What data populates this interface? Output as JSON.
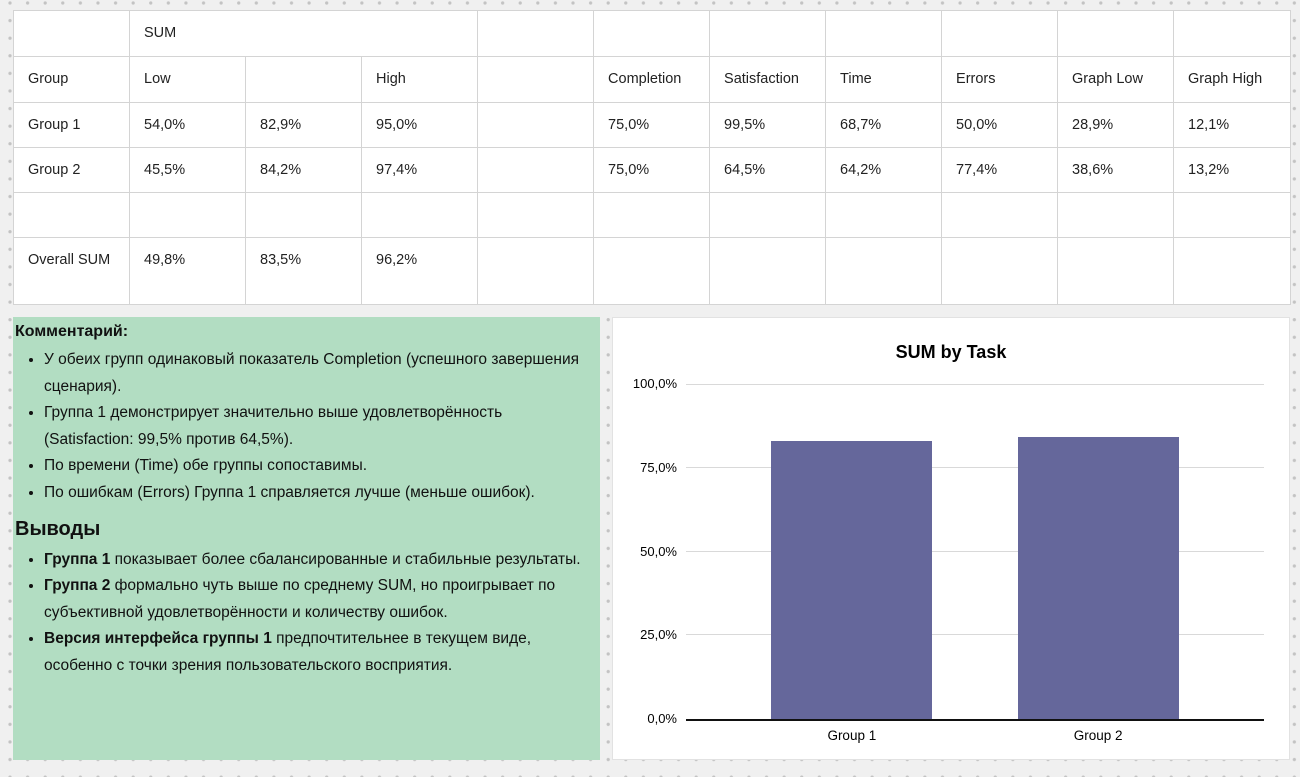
{
  "table": {
    "sum_header": "SUM",
    "col_headers": [
      "Group",
      "Low",
      "",
      "High",
      "",
      "Completion",
      "Satisfaction",
      "Time",
      "Errors",
      "Graph Low",
      "Graph High"
    ],
    "rows": [
      [
        "Group 1",
        "54,0%",
        "82,9%",
        "95,0%",
        "",
        "75,0%",
        "99,5%",
        "68,7%",
        "50,0%",
        "28,9%",
        "12,1%"
      ],
      [
        "Group 2",
        "45,5%",
        "84,2%",
        "97,4%",
        "",
        "75,0%",
        "64,5%",
        "64,2%",
        "77,4%",
        "38,6%",
        "13,2%"
      ],
      [
        "",
        "",
        "",
        "",
        "",
        "",
        "",
        "",
        "",
        "",
        ""
      ],
      [
        "Overall SUM",
        "49,8%",
        "83,5%",
        "96,2%",
        "",
        "",
        "",
        "",
        "",
        "",
        ""
      ]
    ]
  },
  "comment": {
    "title": "Комментарий:",
    "bullets": [
      {
        "bold": "",
        "text": "У обеих групп одинаковый показатель Completion (успешного завершения сценария)."
      },
      {
        "bold": "",
        "text": "Группа 1 демонстрирует значительно выше удовлетворённость (Satisfaction: 99,5% против 64,5%)."
      },
      {
        "bold": "",
        "text": "По времени (Time) обе группы сопоставимы."
      },
      {
        "bold": "",
        "text": "По ошибкам (Errors) Группа 1 справляется лучше (меньше ошибок)."
      }
    ],
    "conclusions_title": "Выводы",
    "conclusions": [
      {
        "bold": "Группа 1",
        "text": " показывает более сбалансированные и стабильные результаты."
      },
      {
        "bold": "Группа 2",
        "text": " формально чуть выше по среднему SUM, но проигрывает по субъективной удовлетворённости и количеству ошибок."
      },
      {
        "bold": "Версия интерфейса группы 1",
        "text": " предпочтительнее в текущем виде, особенно с точки зрения пользовательского восприятия."
      }
    ]
  },
  "chart_data": {
    "type": "bar",
    "title": "SUM by Task",
    "categories": [
      "Group 1",
      "Group 2"
    ],
    "values": [
      82.9,
      84.2
    ],
    "ylim": [
      0,
      100
    ],
    "ytick_values": [
      0,
      25,
      50,
      75,
      100
    ],
    "ytick_labels": [
      "0,0%",
      "25,0%",
      "50,0%",
      "75,0%",
      "100,0%"
    ],
    "grid": true,
    "legend_position": "none",
    "bar_color": "#65679b",
    "xlabel": "",
    "ylabel": ""
  }
}
